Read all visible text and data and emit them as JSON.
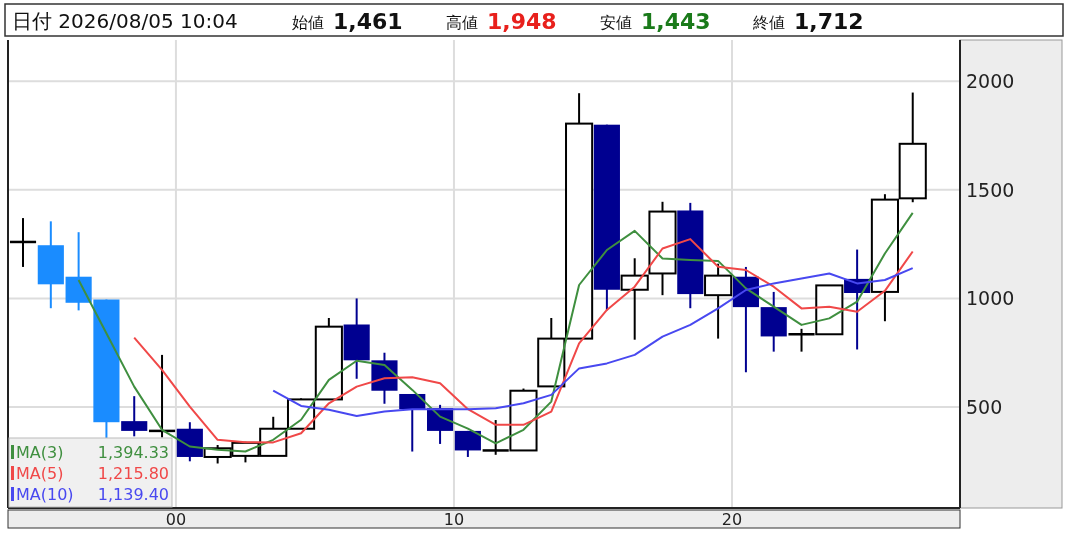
{
  "chart_data": {
    "type": "candlestick",
    "title": "日付 2026/08/05 10:04",
    "x": [
      -5.5,
      -4.5,
      -3.5,
      -2.5,
      -1.5,
      -0.5,
      0.5,
      1.5,
      2.5,
      3.5,
      4.5,
      5.5,
      6.5,
      7.5,
      8.5,
      9.5,
      10.5,
      11.5,
      12.5,
      13.5,
      14.5,
      15.5,
      16.5,
      17.5,
      18.5,
      19.5,
      20.5,
      21.5,
      22.5,
      23.5,
      24.5,
      25.5,
      26.5
    ],
    "ohlc": [
      [
        1260,
        1370,
        1145,
        1260
      ],
      [
        1245,
        1355,
        955,
        1065
      ],
      [
        1100,
        1305,
        945,
        980
      ],
      [
        995,
        995,
        355,
        430
      ],
      [
        435,
        550,
        365,
        390
      ],
      [
        390,
        740,
        360,
        390
      ],
      [
        400,
        430,
        250,
        270
      ],
      [
        270,
        325,
        240,
        310
      ],
      [
        275,
        340,
        245,
        335
      ],
      [
        275,
        455,
        275,
        400
      ],
      [
        400,
        540,
        400,
        535
      ],
      [
        535,
        910,
        535,
        870
      ],
      [
        880,
        1000,
        630,
        715
      ],
      [
        715,
        750,
        515,
        575
      ],
      [
        560,
        560,
        295,
        490
      ],
      [
        495,
        510,
        330,
        390
      ],
      [
        390,
        390,
        270,
        300
      ],
      [
        300,
        440,
        280,
        300
      ],
      [
        300,
        585,
        300,
        575
      ],
      [
        595,
        910,
        595,
        815
      ],
      [
        815,
        1945,
        815,
        1805
      ],
      [
        1800,
        1800,
        945,
        1040
      ],
      [
        1040,
        1185,
        810,
        1105
      ],
      [
        1115,
        1445,
        1015,
        1400
      ],
      [
        1405,
        1440,
        955,
        1020
      ],
      [
        1015,
        1160,
        815,
        1105
      ],
      [
        1100,
        1145,
        660,
        960
      ],
      [
        960,
        1030,
        755,
        825
      ],
      [
        835,
        860,
        755,
        835
      ],
      [
        835,
        1060,
        835,
        1060
      ],
      [
        1090,
        1225,
        765,
        1025
      ],
      [
        1030,
        1480,
        895,
        1455
      ],
      [
        1461,
        1948,
        1443,
        1712
      ]
    ],
    "colors": [
      "#000000",
      "#1a8cff",
      "#1a8cff",
      "#1a8cff",
      "#000090",
      "#000000",
      "#000090",
      "#ffffff",
      "#ffffff",
      "#ffffff",
      "#ffffff",
      "#ffffff",
      "#000090",
      "#000090",
      "#000090",
      "#000090",
      "#000090",
      "#000000",
      "#ffffff",
      "#ffffff",
      "#ffffff",
      "#000090",
      "#ffffff",
      "#ffffff",
      "#000090",
      "#ffffff",
      "#000090",
      "#000090",
      "#000000",
      "#ffffff",
      "#000090",
      "#ffffff",
      "#ffffff"
    ],
    "series": [
      {
        "name": "MA(3)",
        "type": "line",
        "color": "#3f8f3f",
        "x": [
          -3.5,
          -2.5,
          -1.5,
          -0.5,
          0.5,
          1.5,
          2.5,
          3.5,
          4.5,
          5.5,
          6.5,
          7.5,
          8.5,
          9.5,
          10.5,
          11.5,
          12.5,
          13.5,
          14.5,
          15.5,
          16.5,
          17.5,
          18.5,
          19.5,
          20.5,
          21.5,
          22.5,
          23.5,
          24.5,
          25.5,
          26.5
        ],
        "values": [
          1085,
          840,
          594,
          395,
          318,
          303,
          295,
          349,
          441,
          625,
          713,
          694,
          579,
          456,
          400,
          333,
          395,
          525,
          1062,
          1223,
          1311,
          1184,
          1177,
          1173,
          1046,
          962,
          878,
          908,
          985,
          1207,
          1394
        ]
      },
      {
        "name": "MA(5)",
        "type": "line",
        "color": "#f04848",
        "x": [
          -1.5,
          -0.5,
          0.5,
          1.5,
          2.5,
          3.5,
          4.5,
          5.5,
          6.5,
          7.5,
          8.5,
          9.5,
          10.5,
          11.5,
          12.5,
          13.5,
          14.5,
          15.5,
          16.5,
          17.5,
          18.5,
          19.5,
          20.5,
          21.5,
          22.5,
          23.5,
          24.5,
          25.5,
          26.5
        ],
        "values": [
          819,
          671,
          502,
          349,
          338,
          337,
          379,
          517,
          594,
          632,
          637,
          609,
          490,
          418,
          418,
          479,
          793,
          947,
          1054,
          1230,
          1273,
          1146,
          1131,
          1054,
          954,
          962,
          939,
          1035,
          1216
        ]
      },
      {
        "name": "MA(10)",
        "type": "line",
        "color": "#4848f0",
        "x": [
          3.5,
          4.5,
          5.5,
          6.5,
          7.5,
          8.5,
          9.5,
          10.5,
          11.5,
          12.5,
          13.5,
          14.5,
          15.5,
          16.5,
          17.5,
          18.5,
          19.5,
          20.5,
          21.5,
          22.5,
          23.5,
          24.5,
          25.5,
          26.5
        ],
        "values": [
          575,
          505,
          487,
          459,
          479,
          490,
          490,
          490,
          494,
          517,
          556,
          678,
          701,
          740,
          824,
          878,
          954,
          1039,
          1069,
          1092,
          1115,
          1069,
          1085,
          1139
        ]
      }
    ],
    "xlim": [
      -6.04,
      28.2
    ],
    "ylim": [
      35,
      2190
    ],
    "xticks": [
      {
        "value": 0,
        "label": "00"
      },
      10,
      20
    ],
    "yticks": [
      500,
      1000,
      1500,
      2000
    ],
    "grid": true,
    "legend": "bottom left",
    "annotations": [
      "始値",
      "1,461",
      "高値",
      "1,948",
      "安値",
      "1,443",
      "終値",
      "1,712",
      "1,394.33",
      "1,215.80",
      "1,139.40"
    ]
  }
}
